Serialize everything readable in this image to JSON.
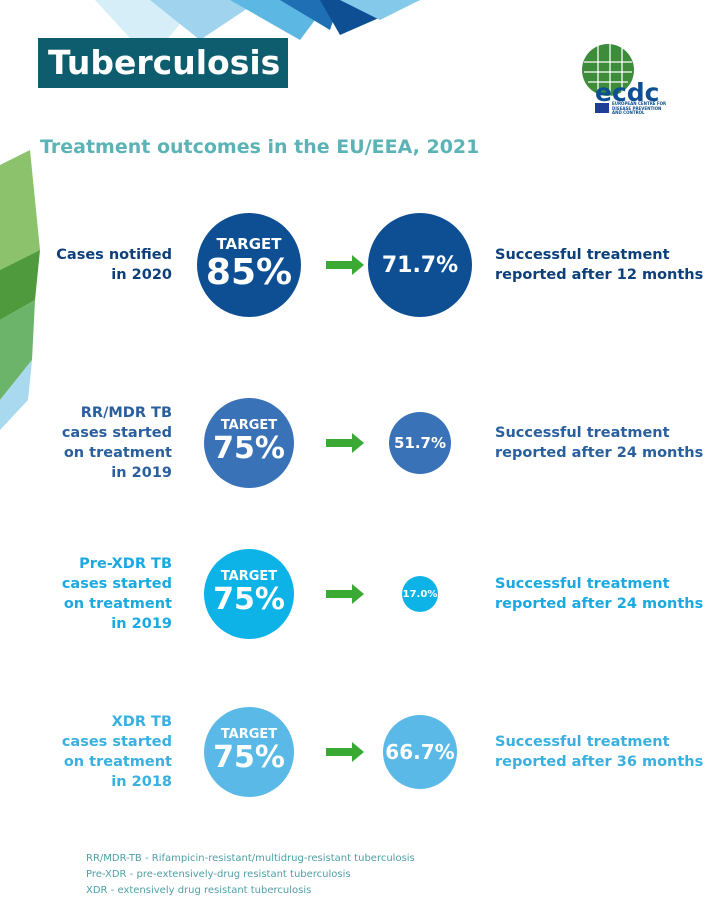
{
  "header": {
    "title": "Tuberculosis",
    "logo": "ecdc",
    "logo_caption": [
      "EUROPEAN CENTRE FOR",
      "DISEASE PREVENTION",
      "AND CONTROL"
    ]
  },
  "subtitle": "Treatment outcomes in the EU/EEA, 2021",
  "rows": [
    {
      "label": [
        "Cases notified",
        "in 2020"
      ],
      "target_label": "TARGET",
      "target": "85%",
      "result": "71.7%",
      "outcome": [
        "Successful treatment",
        "reported after 12 months"
      ]
    },
    {
      "label": [
        "RR/MDR TB",
        "cases started",
        "on treatment",
        "in 2019"
      ],
      "target_label": "TARGET",
      "target": "75%",
      "result": "51.7%",
      "outcome": [
        "Successful treatment",
        "reported after 24 months"
      ]
    },
    {
      "label": [
        "Pre-XDR TB",
        "cases started",
        "on treatment",
        "in 2019"
      ],
      "target_label": "TARGET",
      "target": "75%",
      "result": "17.0%",
      "outcome": [
        "Successful treatment",
        "reported after 24 months"
      ]
    },
    {
      "label": [
        "XDR TB",
        "cases started",
        "on treatment",
        "in 2018"
      ],
      "target_label": "TARGET",
      "target": "75%",
      "result": "66.7%",
      "outcome": [
        "Successful treatment",
        "reported after 36 months"
      ]
    }
  ],
  "footnotes": [
    "RR/MDR-TB - Rifampicin-resistant/multidrug-resistant tuberculosis",
    "Pre-XDR - pre-extensively-drug resistant tuberculosis",
    "XDR - extensively drug resistant tuberculosis"
  ]
}
